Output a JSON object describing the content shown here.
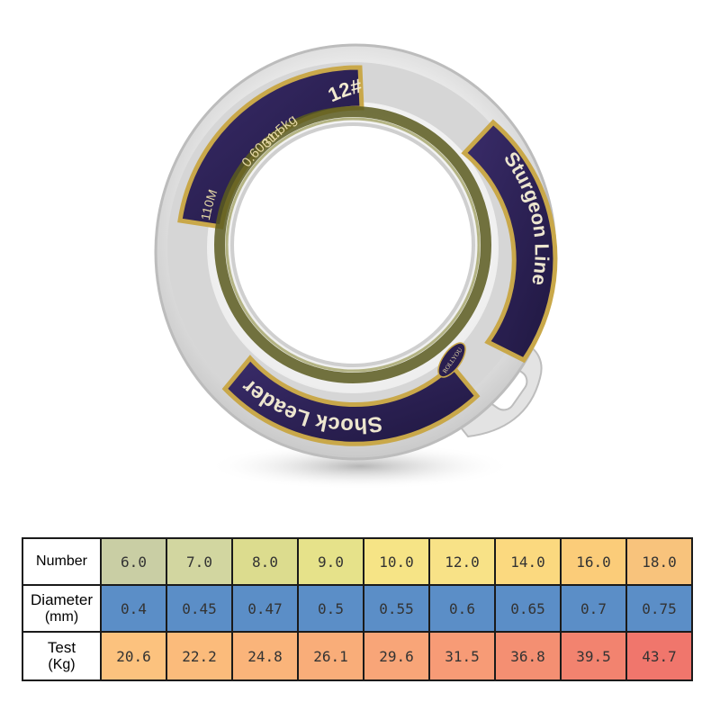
{
  "spool": {
    "brand": "Sturgeon Line",
    "product": "Shock Leader",
    "number": "12#",
    "diameter": "0.60mm",
    "strength": "31.5kg",
    "length": "110M",
    "maker": "ROLLYOU",
    "colors": {
      "label_dark": "#2a1f4f",
      "label_gold": "#c9a84a",
      "line_olive": "#5b5a1e",
      "case": "#d9d9d9"
    }
  },
  "table": {
    "rows": [
      {
        "head": [
          "Number"
        ],
        "values": [
          "6.0",
          "7.0",
          "8.0",
          "9.0",
          "10.0",
          "12.0",
          "14.0",
          "16.0",
          "18.0"
        ],
        "colors": [
          "#c9cea4",
          "#d2d6a0",
          "#dcdc8e",
          "#e6e28a",
          "#f6e486",
          "#f8e287",
          "#fbd97f",
          "#fbcc79",
          "#f8c37c"
        ]
      },
      {
        "head": [
          "Diameter",
          "(mm)"
        ],
        "values": [
          "0.4",
          "0.45",
          "0.47",
          "0.5",
          "0.55",
          "0.6",
          "0.65",
          "0.7",
          "0.75"
        ],
        "colors": [
          "#5b8ec7",
          "#5b8ec7",
          "#5b8ec7",
          "#5b8ec7",
          "#5b8ec7",
          "#5b8ec7",
          "#5b8ec7",
          "#5b8ec7",
          "#5b8ec7"
        ]
      },
      {
        "head": [
          "Test",
          "(Kg)"
        ],
        "values": [
          "20.6",
          "22.2",
          "24.8",
          "26.1",
          "29.6",
          "31.5",
          "36.8",
          "39.5",
          "43.7"
        ],
        "colors": [
          "#fcc27e",
          "#fbbb7b",
          "#fab47a",
          "#f9ad79",
          "#f8a578",
          "#f79b76",
          "#f48f72",
          "#f2836f",
          "#f0766c"
        ]
      }
    ]
  }
}
